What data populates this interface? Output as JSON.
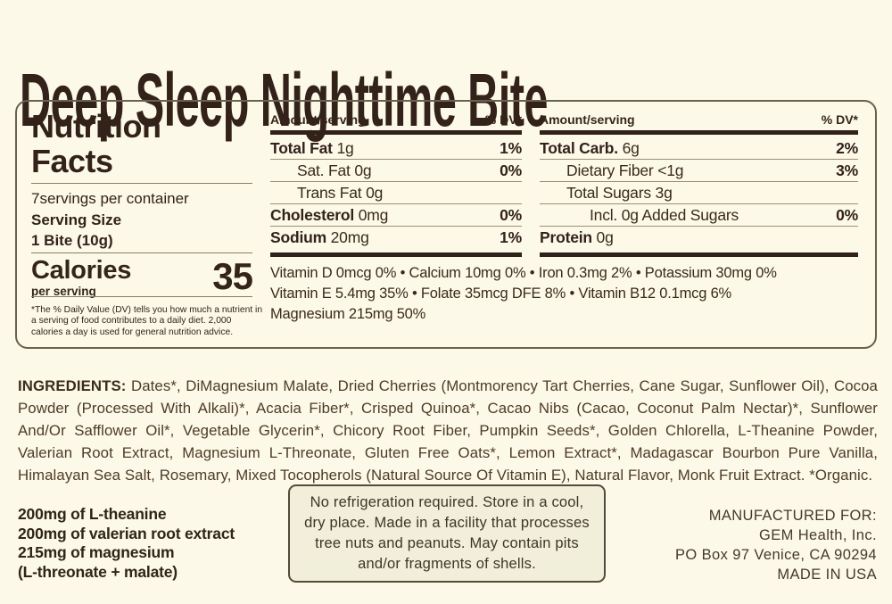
{
  "product": {
    "title": "Deep Sleep Nighttime Bite"
  },
  "colors": {
    "background": "#fcf9e8",
    "text_dark_brown": "#33221a",
    "ingredients_brown": "#4e3b26",
    "panel_border": "#68624e",
    "thick_bar": "#30211a",
    "hairline": "#8b7d65",
    "storage_box_bg": "#f1eeda"
  },
  "nutrition_panel": {
    "heading": "Nutrition Facts",
    "servings_per_container": "7servings per container",
    "serving_size_label": "Serving Size",
    "serving_size_value": "1 Bite (10g)",
    "calories_label": "Calories",
    "calories_sub": "per serving",
    "calories_value": "35",
    "footnote": "*The % Daily Value (DV) tells you how much a nutrient in a serving of food contributes to a daily diet. 2,000 calories a day is used for general nutrition advice.",
    "col_header_amount": "Amount/serving",
    "col_header_dv": "% DV*",
    "fat_table": {
      "rows": [
        {
          "label_bold": "Total Fat",
          "label_rest": " 1g",
          "dv": "1%"
        },
        {
          "label_bold": "",
          "label_rest": "Sat. Fat 0g",
          "dv": "0%"
        },
        {
          "label_bold": "",
          "label_rest": "Trans Fat 0g",
          "dv": ""
        },
        {
          "label_bold": "Cholesterol",
          "label_rest": " 0mg",
          "dv": "0%"
        },
        {
          "label_bold": "Sodium",
          "label_rest": " 20mg",
          "dv": "1%"
        }
      ]
    },
    "carb_table": {
      "rows": [
        {
          "label_bold": "Total Carb.",
          "label_rest": " 6g",
          "dv": "2%"
        },
        {
          "label_bold": "",
          "label_rest": "Dietary Fiber <1g",
          "dv": "3%"
        },
        {
          "label_bold": "",
          "label_rest": "Total Sugars 3g",
          "dv": ""
        },
        {
          "label_bold": "",
          "label_rest": "Incl. 0g Added Sugars",
          "dv": "0%"
        },
        {
          "label_bold": "Protein",
          "label_rest": " 0g",
          "dv": ""
        }
      ]
    },
    "micronutrients": "Vitamin D 0mcg 0% • Calcium 10mg 0% • Iron 0.3mg 2% • Potassium 30mg 0%\nVitamin E 5.4mg 35% • Folate 35mcg DFE 8% • Vitamin B12 0.1mcg 6%\nMagnesium 215mg 50%"
  },
  "ingredients": {
    "label": "INGREDIENTS:",
    "text": " Dates*, DiMagnesium Malate, Dried Cherries (Montmorency Tart Cherries, Cane Sugar, Sunflower Oil), Cocoa Powder (Processed With Alkali)*, Acacia Fiber*, Crisped Quinoa*, Cacao Nibs (Cacao, Coconut Palm Nectar)*, Sunflower And/Or Safflower Oil*, Vegetable Glycerin*, Chicory Root Fiber, Pumpkin Seeds*, Golden Chlorella, L-Theanine Powder, Valerian Root Extract, Magnesium L-Threonate, Gluten Free Oats*, Lemon Extract*, Madagascar Bourbon Pure Vanilla, Himalayan Sea Salt, Rosemary, Mixed Tocopherols (Natural Source Of Vitamin E), Natural Flavor, Monk Fruit Extract. *Organic."
  },
  "highlights": {
    "lines": "200mg of L-theanine\n200mg of valerian root extract\n215mg of magnesium\n(L-threonate + malate)"
  },
  "storage_notice": {
    "text": "No refrigeration required. Store in a cool,\ndry place. Made in a facility that processes\ntree nuts and peanuts. May contain pits\nand/or fragments of shells."
  },
  "manufacturer": {
    "lines": "MANUFACTURED FOR:\nGEM Health, Inc.\nPO Box 97 Venice, CA 90294\nMADE IN USA"
  }
}
